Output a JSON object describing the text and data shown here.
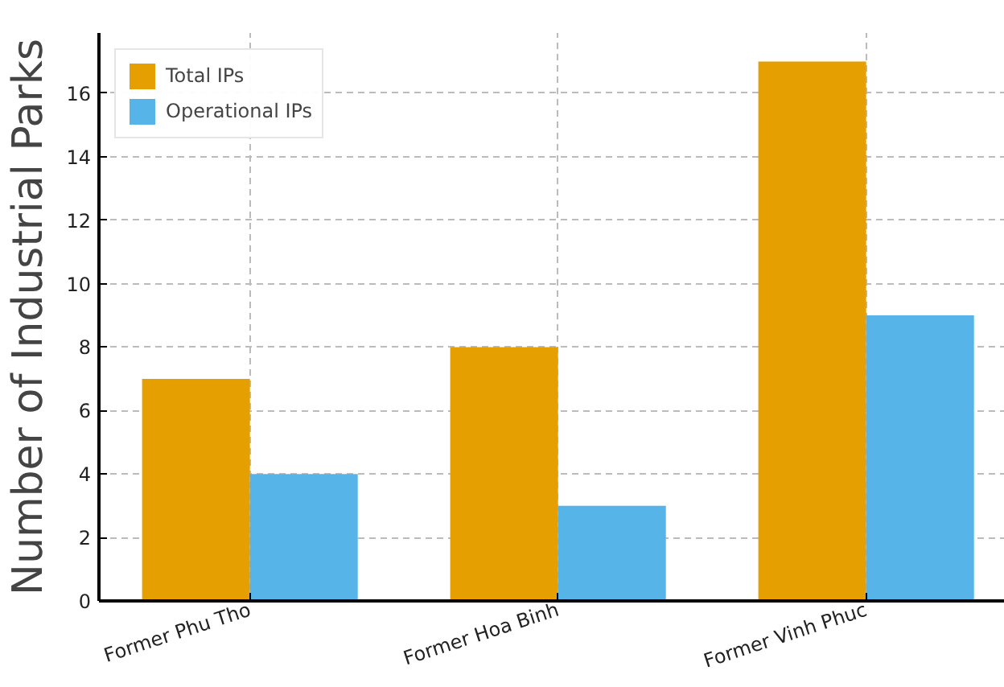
{
  "chart_data": {
    "type": "bar",
    "ylabel": "Number of Industrial Parks",
    "categories": [
      "Former Phu Tho",
      "Former Hoa Binh",
      "Former Vinh Phuc"
    ],
    "series": [
      {
        "name": "Total IPs",
        "color": "#e69f00",
        "values": [
          7,
          8,
          17
        ]
      },
      {
        "name": "Operational IPs",
        "color": "#56b4e9",
        "values": [
          4,
          3,
          9
        ]
      }
    ],
    "ylim": [
      0,
      17.9
    ],
    "yticks": [
      0,
      2,
      4,
      6,
      8,
      10,
      12,
      14,
      16
    ],
    "grid": true,
    "legend": "top left"
  }
}
